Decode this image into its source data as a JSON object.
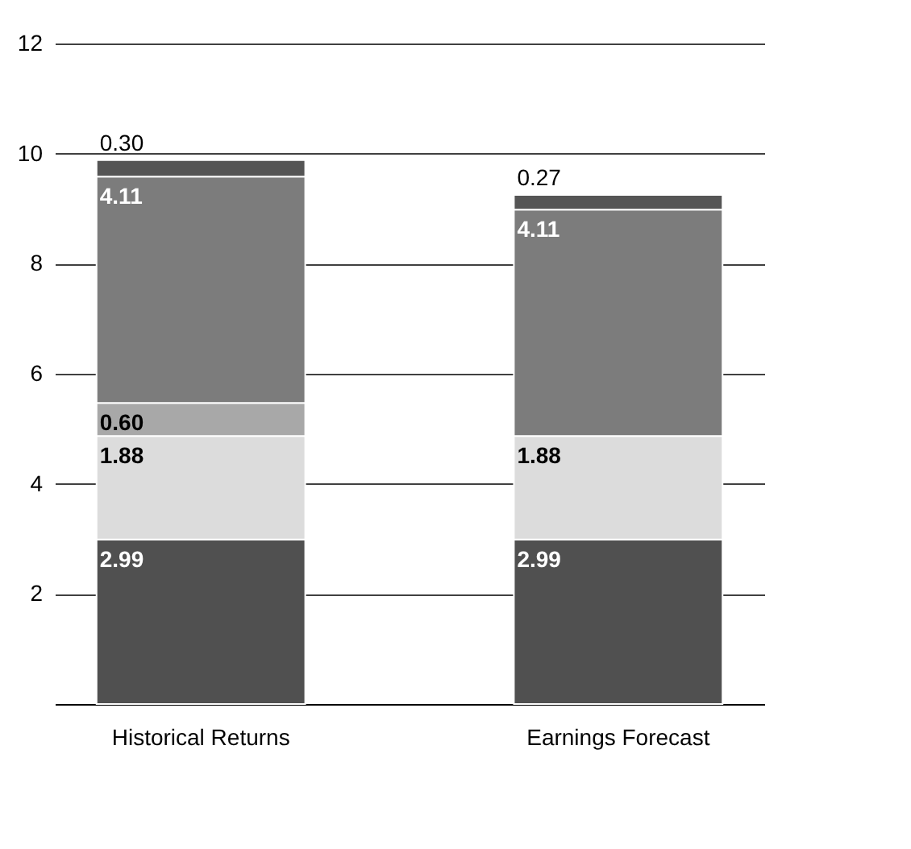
{
  "chart_data": {
    "type": "bar",
    "stacked": true,
    "categories": [
      "Historical Returns",
      "Earnings Forecast"
    ],
    "series": [
      {
        "color": "#505050",
        "values": [
          2.99,
          2.99
        ],
        "value_labels": [
          "2.99",
          "2.99"
        ]
      },
      {
        "color": "#dcdcdc",
        "values": [
          1.88,
          1.88
        ],
        "value_labels": [
          "1.88",
          "1.88"
        ]
      },
      {
        "color": "#a8a8a8",
        "values": [
          0.6,
          null
        ],
        "value_labels": [
          "0.60",
          null
        ]
      },
      {
        "color": "#7c7c7c",
        "values": [
          4.11,
          4.11
        ],
        "value_labels": [
          "4.11",
          "4.11"
        ]
      },
      {
        "color": "#555555",
        "values": [
          0.3,
          0.27
        ],
        "value_labels": [
          "0.30",
          "0.27"
        ]
      }
    ],
    "ylim": [
      0,
      12
    ],
    "yticks": [
      2,
      4,
      6,
      8,
      10,
      12
    ],
    "grid": "y"
  }
}
